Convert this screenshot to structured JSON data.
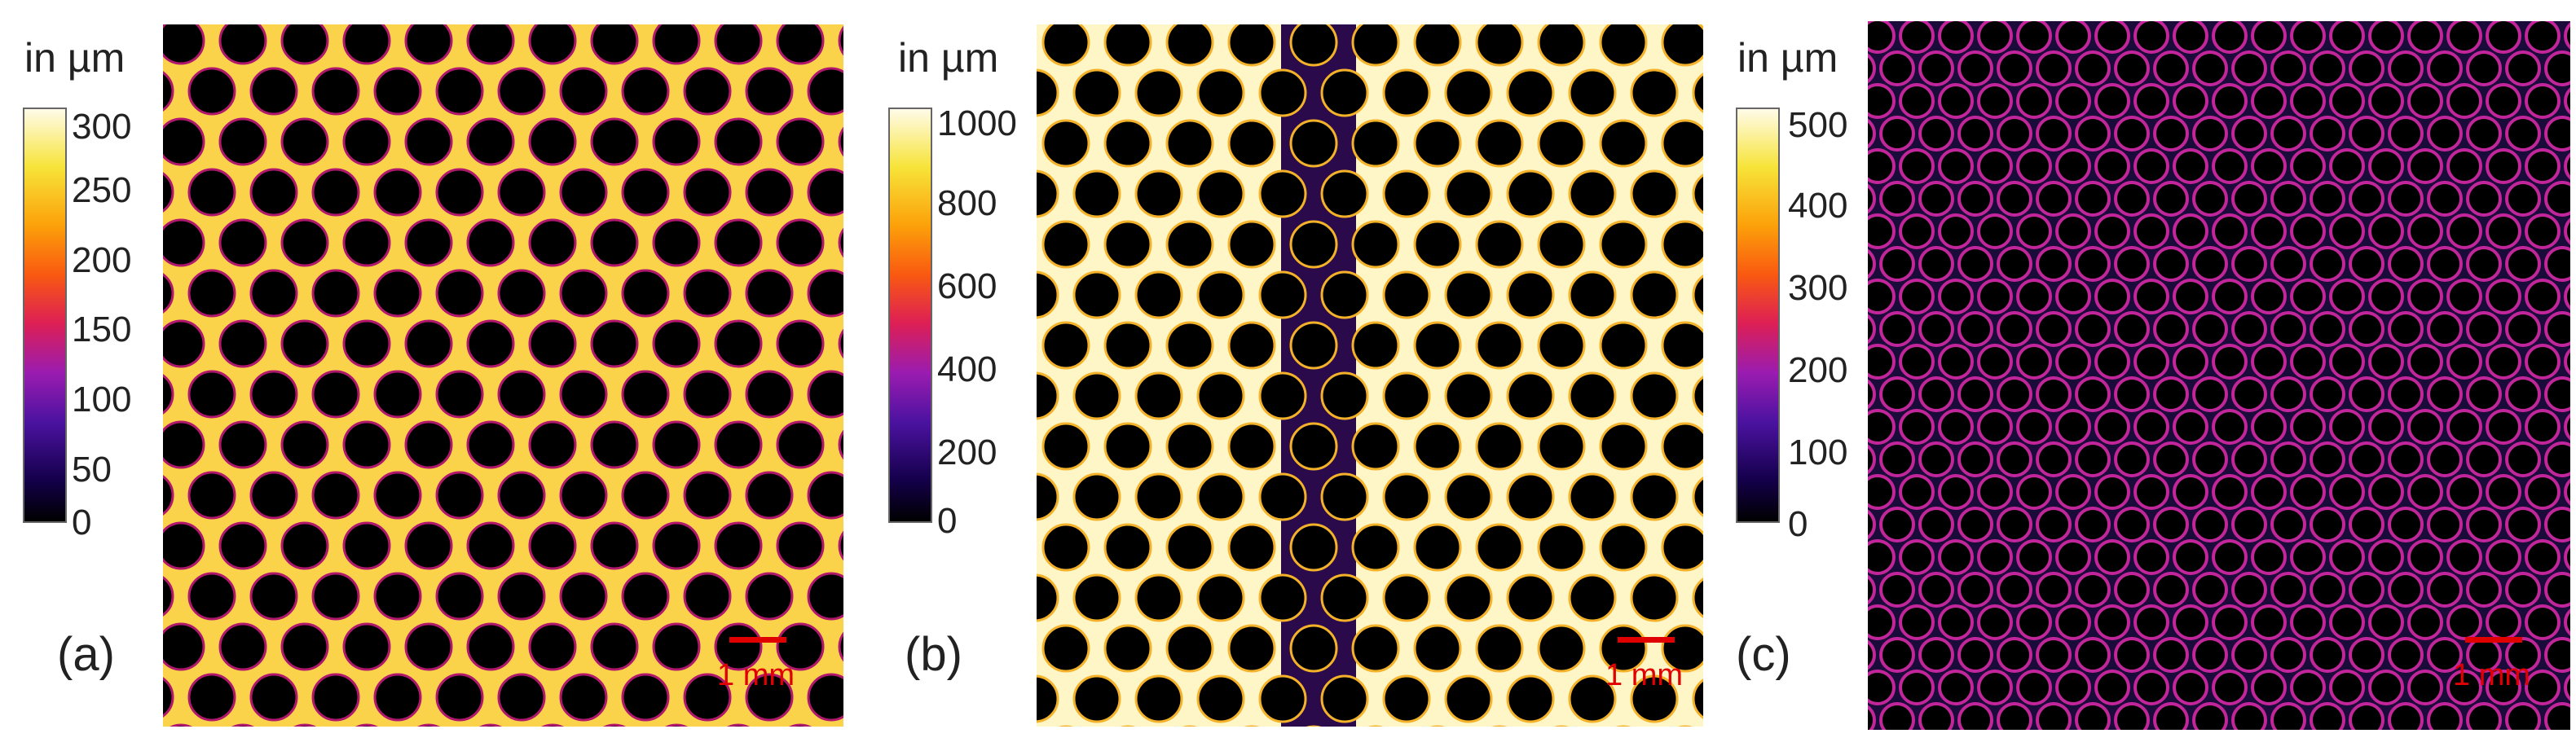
{
  "colors": {
    "scale_bar": "#e00000",
    "hole": "#000000"
  },
  "panels": [
    {
      "label": "(a)",
      "unit": "in µm",
      "colorbar_ticks": [
        "300",
        "250",
        "200",
        "150",
        "100",
        "50",
        "0"
      ],
      "scale_bar": "1 mm",
      "pattern": "uniform-thickness-hexagonal-holes"
    },
    {
      "label": "(b)",
      "unit": "in µm",
      "colorbar_ticks": [
        "1000",
        "800",
        "600",
        "400",
        "200",
        "0"
      ],
      "scale_bar": "1 mm",
      "pattern": "central-thin-column"
    },
    {
      "label": "(c)",
      "unit": "in µm",
      "colorbar_ticks": [
        "500",
        "400",
        "300",
        "200",
        "100",
        "0"
      ],
      "scale_bar": "1 mm",
      "pattern": "dense-thin-region"
    }
  ]
}
